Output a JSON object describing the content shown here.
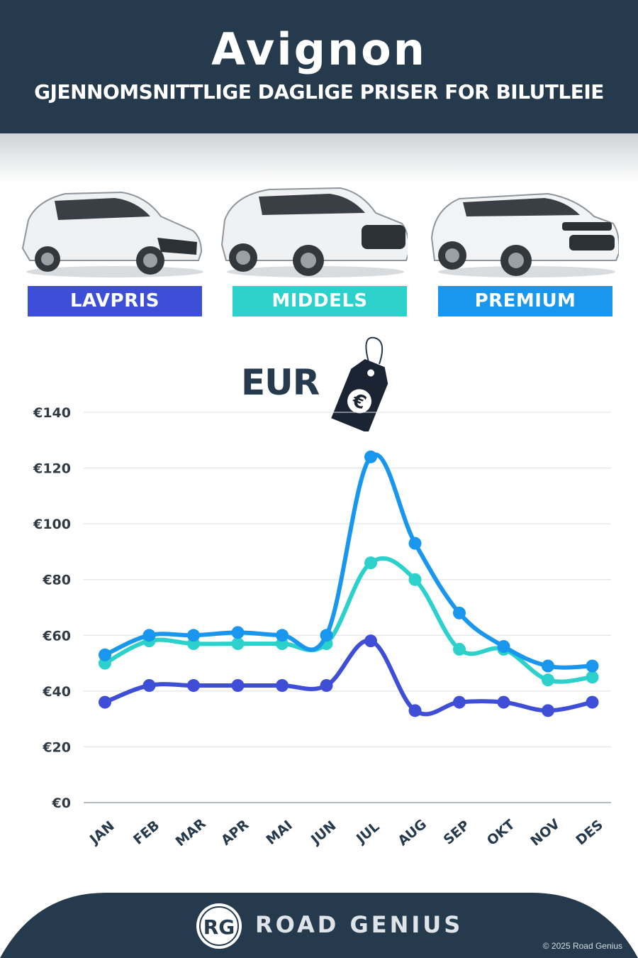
{
  "header": {
    "title": "Avignon",
    "subtitle": "GJENNOMSNITTLIGE DAGLIGE PRISER FOR BILUTLEIE"
  },
  "categories": [
    {
      "label": "LAVPRIS",
      "color": "#3f4ed6"
    },
    {
      "label": "MIDDELS",
      "color": "#2cd1cc"
    },
    {
      "label": "PREMIUM",
      "color": "#1996ee"
    }
  ],
  "currency_label": "EUR",
  "tag_icon": "euro-price-tag-icon",
  "chart_data": {
    "type": "line",
    "categories": [
      "JAN",
      "FEB",
      "MAR",
      "APR",
      "MAI",
      "JUN",
      "JUL",
      "AUG",
      "SEP",
      "OKT",
      "NOV",
      "DES"
    ],
    "y_ticks": [
      "€0",
      "€20",
      "€40",
      "€60",
      "€80",
      "€100",
      "€120",
      "€140"
    ],
    "ylim": [
      0,
      140
    ],
    "grid": true,
    "series": [
      {
        "name": "LAVPRIS",
        "color": "#3f4ed6",
        "values": [
          36,
          42,
          42,
          42,
          42,
          42,
          58,
          33,
          36,
          36,
          33,
          36
        ]
      },
      {
        "name": "MIDDELS",
        "color": "#2cd1cc",
        "values": [
          50,
          58,
          57,
          57,
          57,
          57,
          86,
          80,
          55,
          55,
          44,
          45
        ]
      },
      {
        "name": "PREMIUM",
        "color": "#1996ee",
        "values": [
          53,
          60,
          60,
          61,
          60,
          60,
          124,
          93,
          68,
          56,
          49,
          49
        ]
      }
    ]
  },
  "footer": {
    "logo_text": "RG",
    "brand": "ROAD GENIUS",
    "copyright": "© 2025 Road Genius"
  }
}
